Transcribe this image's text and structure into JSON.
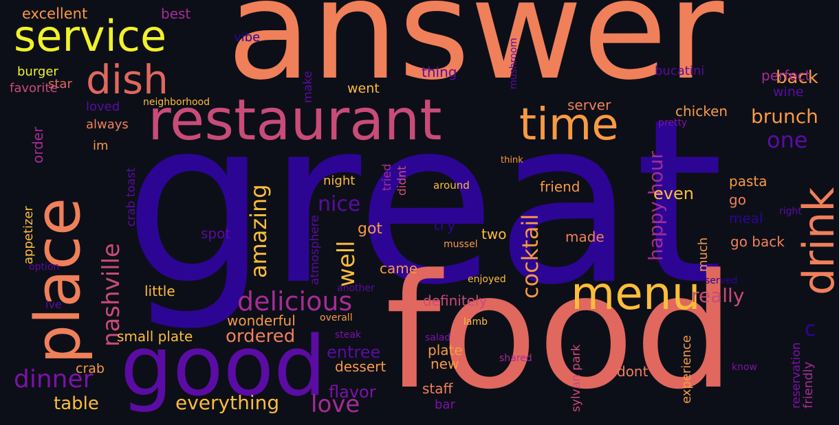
{
  "background": "#0d0f18",
  "palette": {
    "indigo": "#2c0595",
    "purple": "#5a0ca4",
    "violet": "#7c12a8",
    "magenta": "#a52c96",
    "rose": "#c94c78",
    "salmon": "#e0685f",
    "coral": "#f0805a",
    "orange": "#f89a44",
    "amber": "#fcbd3a",
    "yellow": "#f1f229"
  },
  "words": [
    {
      "text": "answer",
      "color": "#f0805a"
    },
    {
      "text": "great",
      "color": "#2c0595"
    },
    {
      "text": "food",
      "color": "#e0685f"
    },
    {
      "text": "good",
      "color": "#5a0ca4"
    },
    {
      "text": "place",
      "color": "#f0805a"
    },
    {
      "text": "restaurant",
      "color": "#c94c78"
    },
    {
      "text": "service",
      "color": "#f1f229"
    },
    {
      "text": "dish",
      "color": "#e0685f"
    },
    {
      "text": "menu",
      "color": "#fcbd3a"
    },
    {
      "text": "time",
      "color": "#f89a44"
    },
    {
      "text": "drink",
      "color": "#f0805a"
    },
    {
      "text": "delicious",
      "color": "#a52c96"
    },
    {
      "text": "dinner",
      "color": "#7c12a8"
    },
    {
      "text": "nashville",
      "color": "#c94c78"
    },
    {
      "text": "amazing",
      "color": "#fcbd3a"
    },
    {
      "text": "well",
      "color": "#fcbd3a"
    },
    {
      "text": "cocktail",
      "color": "#f89a44"
    },
    {
      "text": "happy hour",
      "color": "#a52c96"
    },
    {
      "text": "love",
      "color": "#a52c96"
    },
    {
      "text": "nice",
      "color": "#5a0ca4"
    },
    {
      "text": "everything",
      "color": "#fcbd3a"
    },
    {
      "text": "brunch",
      "color": "#f89a44"
    },
    {
      "text": "really",
      "color": "#c94c78"
    },
    {
      "text": "one",
      "color": "#5a0ca4"
    },
    {
      "text": "back",
      "color": "#f89a44"
    },
    {
      "text": "table",
      "color": "#fcbd3a"
    },
    {
      "text": "ordered",
      "color": "#f0805a"
    },
    {
      "text": "flavor",
      "color": "#7c12a8"
    },
    {
      "text": "entree",
      "color": "#5a0ca4"
    },
    {
      "text": "even",
      "color": "#fcbd3a"
    },
    {
      "text": "excellent",
      "color": "#f89a44"
    },
    {
      "text": "burger",
      "color": "#f1f229"
    },
    {
      "text": "star",
      "color": "#e0685f"
    },
    {
      "text": "favorite",
      "color": "#c94c78"
    },
    {
      "text": "loved",
      "color": "#5a0ca4"
    },
    {
      "text": "always",
      "color": "#f0805a"
    },
    {
      "text": "im",
      "color": "#f89a44"
    },
    {
      "text": "order",
      "color": "#a52c96"
    },
    {
      "text": "best",
      "color": "#a52c96"
    },
    {
      "text": "vibe",
      "color": "#2c0595"
    },
    {
      "text": "make",
      "color": "#5a0ca4"
    },
    {
      "text": "went",
      "color": "#fcbd3a"
    },
    {
      "text": "thing",
      "color": "#5a0ca4"
    },
    {
      "text": "mushroom",
      "color": "#5a0ca4"
    },
    {
      "text": "bucatini",
      "color": "#5a0ca4"
    },
    {
      "text": "perfect",
      "color": "#a52c96"
    },
    {
      "text": "wine",
      "color": "#5a0ca4"
    },
    {
      "text": "neighborhood",
      "color": "#fcbd3a"
    },
    {
      "text": "server",
      "color": "#f0805a"
    },
    {
      "text": "chicken",
      "color": "#f89a44"
    },
    {
      "text": "pretty",
      "color": "#7c12a8"
    },
    {
      "text": "think",
      "color": "#f89a44"
    },
    {
      "text": "crab toast",
      "color": "#5a0ca4"
    },
    {
      "text": "appetizer",
      "color": "#fcbd3a"
    },
    {
      "text": "option",
      "color": "#5a0ca4"
    },
    {
      "text": "ive",
      "color": "#5a0ca4"
    },
    {
      "text": "spot",
      "color": "#5a0ca4"
    },
    {
      "text": "night",
      "color": "#fcbd3a"
    },
    {
      "text": "tried",
      "color": "#a52c96"
    },
    {
      "text": "didnt",
      "color": "#c94c78"
    },
    {
      "text": "got",
      "color": "#f89a44"
    },
    {
      "text": "atmosphere",
      "color": "#5a0ca4"
    },
    {
      "text": "around",
      "color": "#fcbd3a"
    },
    {
      "text": "friend",
      "color": "#f89a44"
    },
    {
      "text": "pasta",
      "color": "#f89a44"
    },
    {
      "text": "go",
      "color": "#f0805a"
    },
    {
      "text": "meal",
      "color": "#2c0595"
    },
    {
      "text": "right",
      "color": "#5a0ca4"
    },
    {
      "text": "try",
      "color": "#2c0595"
    },
    {
      "text": "two",
      "color": "#fcbd3a"
    },
    {
      "text": "mussel",
      "color": "#f89a44"
    },
    {
      "text": "made",
      "color": "#f0805a"
    },
    {
      "text": "go back",
      "color": "#f0805a"
    },
    {
      "text": "much",
      "color": "#f89a44"
    },
    {
      "text": "came",
      "color": "#f89a44"
    },
    {
      "text": "little",
      "color": "#fcbd3a"
    },
    {
      "text": "another",
      "color": "#5a0ca4"
    },
    {
      "text": "enjoyed",
      "color": "#fcbd3a"
    },
    {
      "text": "served",
      "color": "#2c0595"
    },
    {
      "text": "definitely",
      "color": "#c94c78"
    },
    {
      "text": "wonderful",
      "color": "#f89a44"
    },
    {
      "text": "overall",
      "color": "#f89a44"
    },
    {
      "text": "lamb",
      "color": "#fcbd3a"
    },
    {
      "text": "c",
      "color": "#2c0595"
    },
    {
      "text": "small plate",
      "color": "#fcbd3a"
    },
    {
      "text": "steak",
      "color": "#7c12a8"
    },
    {
      "text": "salad",
      "color": "#7c12a8"
    },
    {
      "text": "sylvan park",
      "color": "#c94c78"
    },
    {
      "text": "experience",
      "color": "#f89a44"
    },
    {
      "text": "reservation",
      "color": "#7c12a8"
    },
    {
      "text": "friendly",
      "color": "#a52c96"
    },
    {
      "text": "crab",
      "color": "#f89a44"
    },
    {
      "text": "dessert",
      "color": "#f89a44"
    },
    {
      "text": "plate",
      "color": "#f89a44"
    },
    {
      "text": "new",
      "color": "#f89a44"
    },
    {
      "text": "shared",
      "color": "#a52c96"
    },
    {
      "text": "dont",
      "color": "#f0805a"
    },
    {
      "text": "know",
      "color": "#7c12a8"
    },
    {
      "text": "staff",
      "color": "#f0805a"
    },
    {
      "text": "bar",
      "color": "#7c12a8"
    }
  ]
}
